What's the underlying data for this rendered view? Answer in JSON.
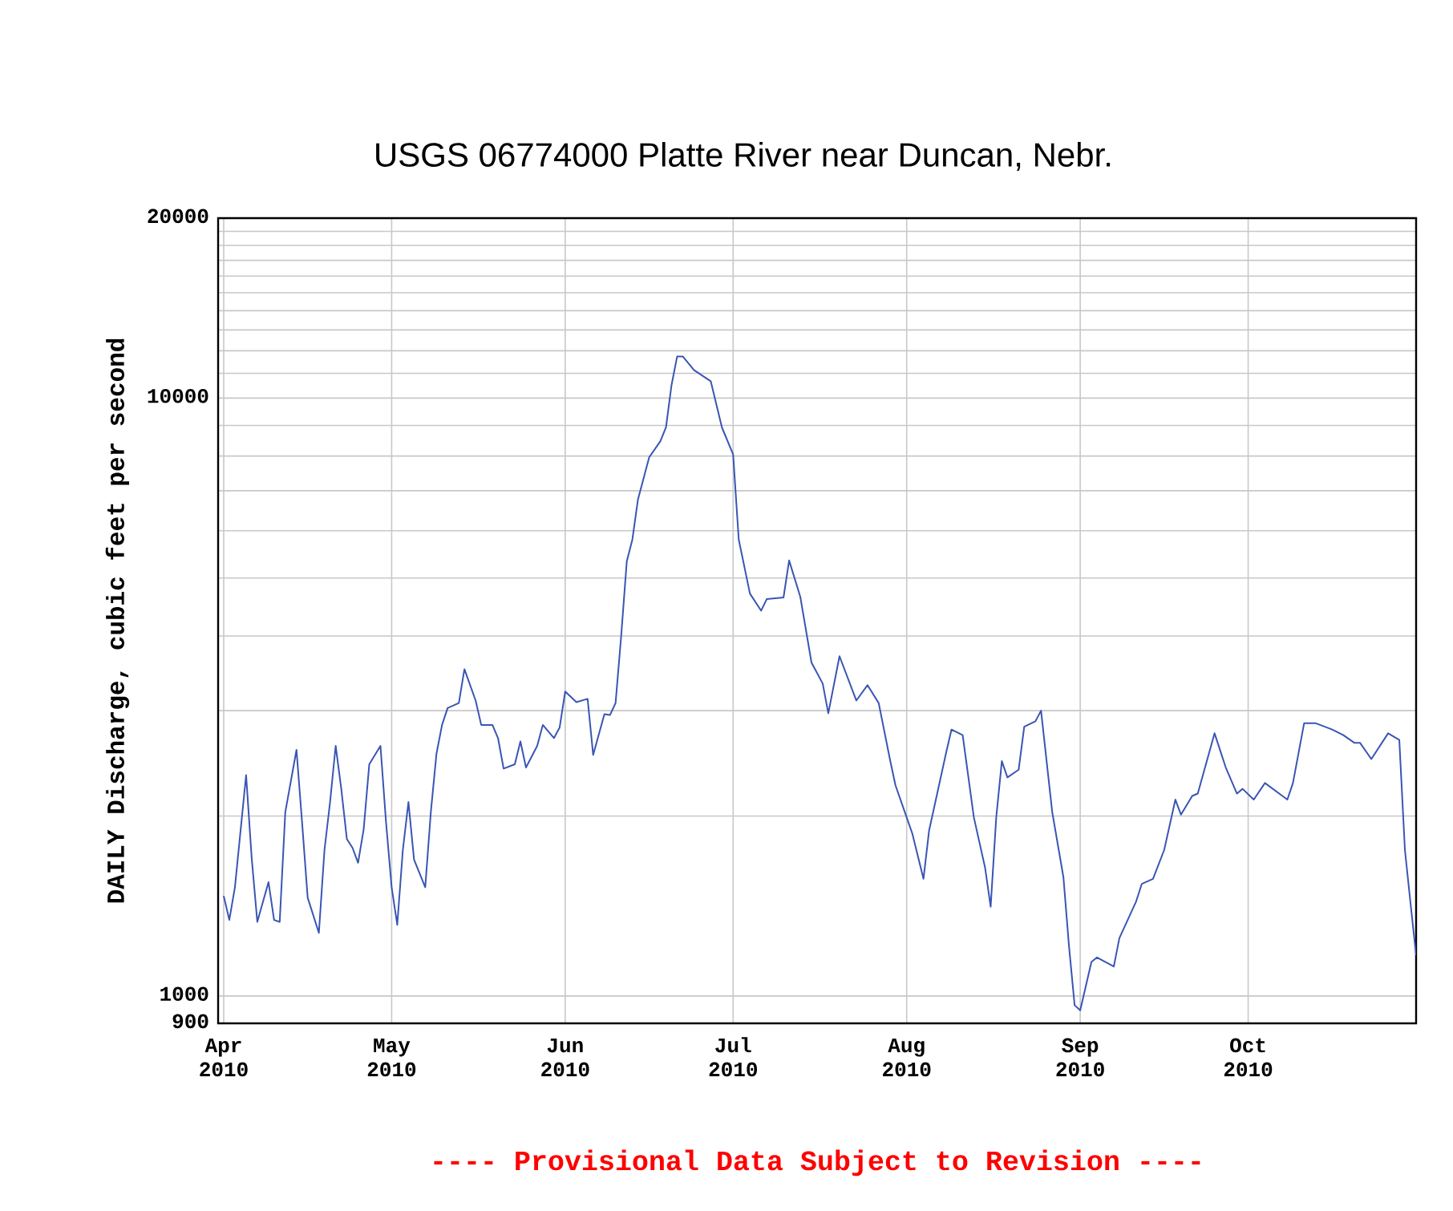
{
  "chart_data": {
    "type": "line",
    "title": "USGS 06774000 Platte River near Duncan, Nebr.",
    "ylabel": "DAILY Discharge, cubic feet per second",
    "annotations": [
      "---- Provisional Data Subject to Revision ----"
    ],
    "x": [
      "2010-04-01",
      "2010-04-02",
      "2010-04-03",
      "2010-04-05",
      "2010-04-06",
      "2010-04-07",
      "2010-04-09",
      "2010-04-10",
      "2010-04-11",
      "2010-04-12",
      "2010-04-14",
      "2010-04-15",
      "2010-04-16",
      "2010-04-18",
      "2010-04-19",
      "2010-04-20",
      "2010-04-21",
      "2010-04-22",
      "2010-04-23",
      "2010-04-24",
      "2010-04-25",
      "2010-04-26",
      "2010-04-27",
      "2010-04-29",
      "2010-04-30",
      "2010-05-01",
      "2010-05-02",
      "2010-05-03",
      "2010-05-04",
      "2010-05-05",
      "2010-05-07",
      "2010-05-08",
      "2010-05-09",
      "2010-05-10",
      "2010-05-11",
      "2010-05-13",
      "2010-05-14",
      "2010-05-16",
      "2010-05-17",
      "2010-05-19",
      "2010-05-20",
      "2010-05-21",
      "2010-05-23",
      "2010-05-24",
      "2010-05-25",
      "2010-05-27",
      "2010-05-28",
      "2010-05-30",
      "2010-05-31",
      "2010-06-01",
      "2010-06-03",
      "2010-06-05",
      "2010-06-06",
      "2010-06-08",
      "2010-06-09",
      "2010-06-10",
      "2010-06-11",
      "2010-06-12",
      "2010-06-13",
      "2010-06-14",
      "2010-06-16",
      "2010-06-18",
      "2010-06-19",
      "2010-06-20",
      "2010-06-21",
      "2010-06-22",
      "2010-06-24",
      "2010-06-27",
      "2010-06-29",
      "2010-07-01",
      "2010-07-02",
      "2010-07-04",
      "2010-07-06",
      "2010-07-07",
      "2010-07-10",
      "2010-07-11",
      "2010-07-13",
      "2010-07-15",
      "2010-07-17",
      "2010-07-18",
      "2010-07-20",
      "2010-07-23",
      "2010-07-25",
      "2010-07-27",
      "2010-07-29",
      "2010-07-30",
      "2010-08-02",
      "2010-08-04",
      "2010-08-05",
      "2010-08-08",
      "2010-08-09",
      "2010-08-11",
      "2010-08-13",
      "2010-08-15",
      "2010-08-16",
      "2010-08-17",
      "2010-08-18",
      "2010-08-19",
      "2010-08-21",
      "2010-08-22",
      "2010-08-24",
      "2010-08-25",
      "2010-08-27",
      "2010-08-29",
      "2010-08-30",
      "2010-08-31",
      "2010-09-01",
      "2010-09-03",
      "2010-09-04",
      "2010-09-07",
      "2010-09-08",
      "2010-09-11",
      "2010-09-12",
      "2010-09-14",
      "2010-09-16",
      "2010-09-18",
      "2010-09-19",
      "2010-09-21",
      "2010-09-22",
      "2010-09-25",
      "2010-09-27",
      "2010-09-29",
      "2010-09-30",
      "2010-10-02",
      "2010-10-04",
      "2010-10-08",
      "2010-10-09",
      "2010-10-11",
      "2010-10-13",
      "2010-10-16",
      "2010-10-18",
      "2010-10-20",
      "2010-10-21",
      "2010-10-23",
      "2010-10-26",
      "2010-10-28",
      "2010-10-29",
      "2010-10-30",
      "2010-10-31"
    ],
    "values": [
      1470,
      1340,
      1520,
      2340,
      1700,
      1330,
      1550,
      1340,
      1330,
      2030,
      2580,
      1950,
      1460,
      1275,
      1755,
      2110,
      2620,
      2220,
      1830,
      1770,
      1670,
      1900,
      2440,
      2620,
      1950,
      1520,
      1315,
      1755,
      2110,
      1690,
      1520,
      2030,
      2540,
      2840,
      3030,
      3090,
      3520,
      3120,
      2840,
      2840,
      2700,
      2400,
      2440,
      2665,
      2410,
      2620,
      2840,
      2700,
      2810,
      3230,
      3100,
      3140,
      2530,
      2960,
      2950,
      3090,
      4000,
      5330,
      5800,
      6770,
      7960,
      8470,
      8930,
      10520,
      11740,
      11740,
      11140,
      10670,
      8930,
      8050,
      5800,
      4710,
      4410,
      4610,
      4640,
      5350,
      4650,
      3610,
      3330,
      2970,
      3700,
      3120,
      3310,
      3090,
      2490,
      2250,
      1870,
      1570,
      1890,
      2540,
      2790,
      2730,
      1990,
      1640,
      1410,
      1990,
      2470,
      2320,
      2390,
      2820,
      2880,
      3000,
      2030,
      1580,
      1210,
      965,
      946,
      1140,
      1160,
      1120,
      1250,
      1440,
      1540,
      1570,
      1755,
      2130,
      2010,
      2160,
      2180,
      2750,
      2410,
      2180,
      2220,
      2130,
      2270,
      2130,
      2270,
      2860,
      2860,
      2790,
      2730,
      2650,
      2650,
      2490,
      2750,
      2680,
      1755,
      1430,
      1170
    ],
    "color": "#3a55b4",
    "log": "y",
    "grid": true,
    "xlim": [
      "2010-03-31",
      "2010-10-31"
    ],
    "ylim": [
      900,
      20000
    ],
    "xticks": [
      {
        "value": "2010-04-01",
        "label": "Apr 2010"
      },
      {
        "value": "2010-05-01",
        "label": "May 2010"
      },
      {
        "value": "2010-06-01",
        "label": "Jun 2010"
      },
      {
        "value": "2010-07-01",
        "label": "Jul 2010"
      },
      {
        "value": "2010-08-01",
        "label": "Aug 2010"
      },
      {
        "value": "2010-09-01",
        "label": "Sep 2010"
      },
      {
        "value": "2010-10-01",
        "label": "Oct 2010"
      }
    ],
    "yticks": [
      900,
      1000,
      {
        "value": 2000,
        "label": null
      },
      {
        "value": 3000,
        "label": null
      },
      {
        "value": 4000,
        "label": null
      },
      {
        "value": 5000,
        "label": null
      },
      {
        "value": 6000,
        "label": null
      },
      {
        "value": 7000,
        "label": null
      },
      {
        "value": 8000,
        "label": null
      },
      {
        "value": 9000,
        "label": null
      },
      10000,
      {
        "value": 11000,
        "label": null
      },
      {
        "value": 12000,
        "label": null
      },
      {
        "value": 13000,
        "label": null
      },
      {
        "value": 14000,
        "label": null
      },
      {
        "value": 15000,
        "label": null
      },
      {
        "value": 16000,
        "label": null
      },
      {
        "value": 17000,
        "label": null
      },
      {
        "value": 18000,
        "label": null
      },
      {
        "value": 19000,
        "label": null
      },
      20000
    ]
  }
}
